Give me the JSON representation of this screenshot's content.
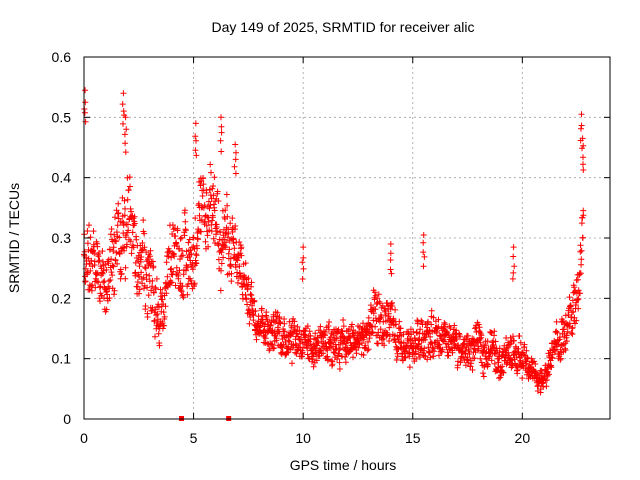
{
  "chart_data": {
    "type": "scatter",
    "title": "Day 149 of 2025, SRMTID for receiver alic",
    "xlabel": "GPS time / hours",
    "ylabel": "SRMTID / TECUs",
    "xlim": [
      0,
      24
    ],
    "ylim": [
      0,
      0.6
    ],
    "xticks": [
      0,
      5,
      10,
      15,
      20
    ],
    "yticks": [
      0,
      0.1,
      0.2,
      0.3,
      0.4,
      0.5,
      0.6
    ],
    "ytick_labels": [
      "0",
      "0.1",
      "0.2",
      "0.3",
      "0.4",
      "0.5",
      "0.6"
    ],
    "grid": true,
    "marker": "+",
    "color": "#ff0000",
    "baseline_markers": [
      4.45,
      6.6
    ],
    "envelope": {
      "hours": [
        0.0,
        0.5,
        1.0,
        1.5,
        2.0,
        2.5,
        3.0,
        3.5,
        4.0,
        4.5,
        5.0,
        5.5,
        6.0,
        6.5,
        7.0,
        7.5,
        8.0,
        8.5,
        9.0,
        9.5,
        10.0,
        10.5,
        11.0,
        11.5,
        12.0,
        12.5,
        13.0,
        13.5,
        14.0,
        14.5,
        15.0,
        15.5,
        16.0,
        16.5,
        17.0,
        17.5,
        18.0,
        18.5,
        19.0,
        19.5,
        20.0,
        20.5,
        21.0,
        21.5,
        22.0,
        22.5,
        22.8
      ],
      "center": [
        0.3,
        0.24,
        0.22,
        0.3,
        0.32,
        0.26,
        0.24,
        0.17,
        0.26,
        0.27,
        0.28,
        0.33,
        0.34,
        0.3,
        0.25,
        0.21,
        0.17,
        0.15,
        0.14,
        0.15,
        0.13,
        0.12,
        0.13,
        0.14,
        0.12,
        0.13,
        0.14,
        0.16,
        0.15,
        0.11,
        0.12,
        0.15,
        0.13,
        0.12,
        0.12,
        0.11,
        0.12,
        0.12,
        0.1,
        0.11,
        0.1,
        0.08,
        0.06,
        0.12,
        0.14,
        0.2,
        0.32
      ],
      "spread": [
        0.09,
        0.08,
        0.07,
        0.09,
        0.09,
        0.08,
        0.09,
        0.07,
        0.07,
        0.08,
        0.08,
        0.08,
        0.08,
        0.08,
        0.06,
        0.05,
        0.04,
        0.04,
        0.04,
        0.05,
        0.04,
        0.04,
        0.04,
        0.05,
        0.04,
        0.04,
        0.05,
        0.06,
        0.05,
        0.04,
        0.04,
        0.05,
        0.05,
        0.04,
        0.04,
        0.04,
        0.04,
        0.04,
        0.04,
        0.04,
        0.04,
        0.03,
        0.03,
        0.04,
        0.05,
        0.06,
        0.09
      ]
    },
    "peaks": [
      {
        "x": 0.05,
        "y": 0.545
      },
      {
        "x": 1.8,
        "y": 0.54
      },
      {
        "x": 1.9,
        "y": 0.5
      },
      {
        "x": 5.1,
        "y": 0.49
      },
      {
        "x": 6.25,
        "y": 0.5
      },
      {
        "x": 6.9,
        "y": 0.455
      },
      {
        "x": 15.5,
        "y": 0.305
      },
      {
        "x": 19.6,
        "y": 0.285
      },
      {
        "x": 22.7,
        "y": 0.505
      },
      {
        "x": 22.75,
        "y": 0.465
      },
      {
        "x": 14.0,
        "y": 0.29
      },
      {
        "x": 10.0,
        "y": 0.285
      }
    ],
    "n_points": 1900
  }
}
